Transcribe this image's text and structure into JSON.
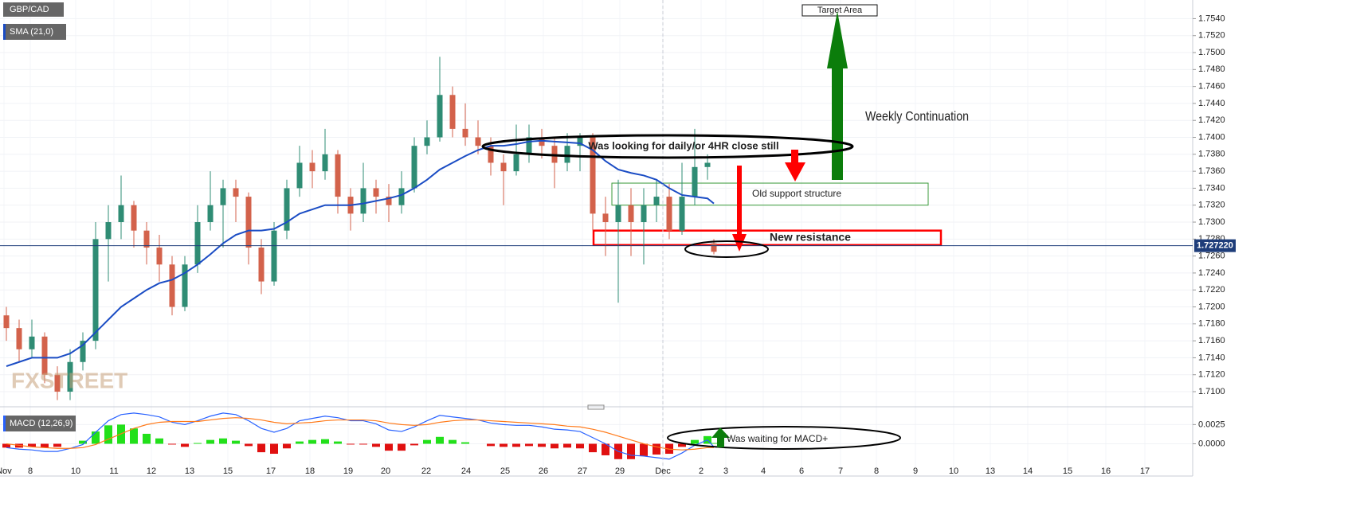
{
  "chart_data": [
    {
      "type": "candlestick",
      "legend": "GBP/CAD",
      "up_color": "#2f8c74",
      "down_color": "#d3624b",
      "ylim": [
        1.7085,
        1.7562
      ],
      "yticks": [
        {
          "value": 1.71,
          "label": "1.7100"
        },
        {
          "value": 1.712,
          "label": "1.7120"
        },
        {
          "value": 1.714,
          "label": "1.7140"
        },
        {
          "value": 1.716,
          "label": "1.7160"
        },
        {
          "value": 1.718,
          "label": "1.7180"
        },
        {
          "value": 1.72,
          "label": "1.7200"
        },
        {
          "value": 1.722,
          "label": "1.7220"
        },
        {
          "value": 1.724,
          "label": "1.7240"
        },
        {
          "value": 1.726,
          "label": "1.7260"
        },
        {
          "value": 1.728,
          "label": "1.7280"
        },
        {
          "value": 1.73,
          "label": "1.7300"
        },
        {
          "value": 1.732,
          "label": "1.7320"
        },
        {
          "value": 1.734,
          "label": "1.7340"
        },
        {
          "value": 1.736,
          "label": "1.7360"
        },
        {
          "value": 1.738,
          "label": "1.7380"
        },
        {
          "value": 1.74,
          "label": "1.7400"
        },
        {
          "value": 1.742,
          "label": "1.7420"
        },
        {
          "value": 1.744,
          "label": "1.7440"
        },
        {
          "value": 1.746,
          "label": "1.7460"
        },
        {
          "value": 1.748,
          "label": "1.7480"
        },
        {
          "value": 1.75,
          "label": "1.7500"
        },
        {
          "value": 1.752,
          "label": "1.7520"
        },
        {
          "value": 1.754,
          "label": "1.7540"
        }
      ],
      "x_labels": [
        "Nov",
        "8",
        "10",
        "11",
        "12",
        "13",
        "15",
        "17",
        "18",
        "19",
        "20",
        "22",
        "24",
        "25",
        "26",
        "27",
        "29",
        "Dec",
        "2",
        "3",
        "4",
        "6",
        "7",
        "8",
        "9",
        "10",
        "13",
        "14",
        "15",
        "16",
        "17"
      ],
      "candles": [
        [
          1.719,
          1.72,
          1.716,
          1.7175
        ],
        [
          1.7175,
          1.7185,
          1.7135,
          1.715
        ],
        [
          1.715,
          1.7185,
          1.714,
          1.7165
        ],
        [
          1.7165,
          1.717,
          1.711,
          1.712
        ],
        [
          1.712,
          1.713,
          1.709,
          1.71
        ],
        [
          1.71,
          1.715,
          1.709,
          1.7135
        ],
        [
          1.7135,
          1.717,
          1.7125,
          1.716
        ],
        [
          1.716,
          1.73,
          1.715,
          1.728
        ],
        [
          1.728,
          1.732,
          1.723,
          1.73
        ],
        [
          1.73,
          1.7355,
          1.728,
          1.732
        ],
        [
          1.732,
          1.7325,
          1.727,
          1.729
        ],
        [
          1.729,
          1.73,
          1.725,
          1.727
        ],
        [
          1.727,
          1.7285,
          1.723,
          1.725
        ],
        [
          1.725,
          1.726,
          1.719,
          1.72
        ],
        [
          1.72,
          1.726,
          1.7195,
          1.725
        ],
        [
          1.725,
          1.732,
          1.724,
          1.73
        ],
        [
          1.73,
          1.736,
          1.729,
          1.732
        ],
        [
          1.732,
          1.735,
          1.727,
          1.734
        ],
        [
          1.734,
          1.735,
          1.73,
          1.733
        ],
        [
          1.733,
          1.7335,
          1.725,
          1.727
        ],
        [
          1.727,
          1.728,
          1.7215,
          1.723
        ],
        [
          1.723,
          1.73,
          1.7225,
          1.729
        ],
        [
          1.729,
          1.735,
          1.728,
          1.734
        ],
        [
          1.734,
          1.739,
          1.733,
          1.737
        ],
        [
          1.737,
          1.7385,
          1.734,
          1.736
        ],
        [
          1.736,
          1.741,
          1.735,
          1.738
        ],
        [
          1.738,
          1.7385,
          1.731,
          1.733
        ],
        [
          1.733,
          1.734,
          1.729,
          1.731
        ],
        [
          1.731,
          1.737,
          1.73,
          1.734
        ],
        [
          1.734,
          1.735,
          1.731,
          1.733
        ],
        [
          1.733,
          1.7345,
          1.73,
          1.732
        ],
        [
          1.732,
          1.736,
          1.731,
          1.734
        ],
        [
          1.734,
          1.74,
          1.7335,
          1.739
        ],
        [
          1.739,
          1.742,
          1.738,
          1.74
        ],
        [
          1.74,
          1.7495,
          1.7395,
          1.745
        ],
        [
          1.745,
          1.746,
          1.74,
          1.741
        ],
        [
          1.741,
          1.744,
          1.739,
          1.74
        ],
        [
          1.74,
          1.742,
          1.738,
          1.739
        ],
        [
          1.739,
          1.74,
          1.7355,
          1.737
        ],
        [
          1.737,
          1.738,
          1.732,
          1.736
        ],
        [
          1.736,
          1.7415,
          1.7355,
          1.738
        ],
        [
          1.738,
          1.7415,
          1.737,
          1.74
        ],
        [
          1.74,
          1.741,
          1.7375,
          1.739
        ],
        [
          1.739,
          1.74,
          1.734,
          1.737
        ],
        [
          1.737,
          1.7405,
          1.736,
          1.739
        ],
        [
          1.739,
          1.7405,
          1.736,
          1.74
        ],
        [
          1.74,
          1.7405,
          1.729,
          1.731
        ],
        [
          1.731,
          1.733,
          1.726,
          1.73
        ],
        [
          1.73,
          1.735,
          1.7205,
          1.732
        ],
        [
          1.732,
          1.734,
          1.726,
          1.73
        ],
        [
          1.73,
          1.734,
          1.725,
          1.732
        ],
        [
          1.732,
          1.735,
          1.73,
          1.733
        ],
        [
          1.733,
          1.7345,
          1.728,
          1.729
        ],
        [
          1.729,
          1.737,
          1.7285,
          1.733
        ],
        [
          1.733,
          1.741,
          1.732,
          1.7365
        ],
        [
          1.7365,
          1.738,
          1.735,
          1.737
        ],
        [
          1.7275,
          1.728,
          1.7262,
          1.7265
        ]
      ],
      "series": [
        {
          "name": "SMA (21,0)",
          "color": "#1a4cc4",
          "values": [
            1.713,
            1.7135,
            1.714,
            1.714,
            1.714,
            1.7145,
            1.7155,
            1.717,
            1.7185,
            1.72,
            1.721,
            1.722,
            1.7228,
            1.7232,
            1.724,
            1.725,
            1.7262,
            1.7275,
            1.7285,
            1.729,
            1.729,
            1.7292,
            1.73,
            1.731,
            1.7315,
            1.732,
            1.732,
            1.732,
            1.7322,
            1.7325,
            1.7328,
            1.7332,
            1.734,
            1.735,
            1.7362,
            1.737,
            1.7378,
            1.7385,
            1.739,
            1.739,
            1.7392,
            1.7395,
            1.7396,
            1.7395,
            1.7394,
            1.7393,
            1.7385,
            1.7372,
            1.7362,
            1.7358,
            1.7355,
            1.735,
            1.734,
            1.7332,
            1.733,
            1.7328,
            1.7322
          ]
        }
      ],
      "current_price": {
        "value": 1.72722,
        "label": "1.727220"
      },
      "zones": [
        {
          "label": "Old support structure",
          "range": [
            1.732,
            1.7346
          ]
        },
        {
          "label": "New resistance",
          "range": [
            1.7273,
            1.729
          ]
        }
      ],
      "annotations": {
        "target": "Target Area",
        "weekly": "Weekly  Continuation",
        "looking": "Was looking for daily/or 4HR close still",
        "watermark": "FXSTREET"
      }
    },
    {
      "type": "macd",
      "legend": "MACD (12,26,9)",
      "macd_color": "#2962ff",
      "signal_color": "#ff7a1a",
      "up_color": "#22e01a",
      "down_color": "#e01010",
      "ylim": [
        -0.0042,
        0.0043
      ],
      "yticks": [
        {
          "value": 0,
          "label": "0.0000"
        },
        {
          "value": 0.0025,
          "label": "0.0025"
        }
      ],
      "macd": [
        -0.0005,
        -0.0007,
        -0.0008,
        -0.001,
        -0.001,
        -0.0006,
        -0.0001,
        0.0015,
        0.003,
        0.0038,
        0.004,
        0.0038,
        0.0035,
        0.0028,
        0.0025,
        0.003,
        0.0036,
        0.004,
        0.0038,
        0.003,
        0.002,
        0.0015,
        0.002,
        0.003,
        0.0033,
        0.0036,
        0.0034,
        0.003,
        0.003,
        0.0026,
        0.0018,
        0.0016,
        0.0022,
        0.003,
        0.0037,
        0.0035,
        0.0033,
        0.0031,
        0.0027,
        0.0025,
        0.0024,
        0.0024,
        0.0022,
        0.0019,
        0.0018,
        0.0016,
        0.0008,
        0,
        -0.001,
        -0.0015,
        -0.0016,
        -0.0018,
        -0.002,
        -0.0012,
        -0.0002,
        0.0005,
        -0.0004
      ],
      "signal": [
        0,
        -0.0002,
        -0.0004,
        -0.0005,
        -0.0006,
        -0.0006,
        -0.0005,
        -0.0001,
        0.0006,
        0.0013,
        0.002,
        0.0025,
        0.0028,
        0.0029,
        0.0029,
        0.0029,
        0.0031,
        0.0033,
        0.0034,
        0.0033,
        0.0031,
        0.0028,
        0.0026,
        0.0027,
        0.0028,
        0.003,
        0.0031,
        0.0031,
        0.0031,
        0.003,
        0.0027,
        0.0025,
        0.0024,
        0.0025,
        0.0028,
        0.003,
        0.0031,
        0.0031,
        0.003,
        0.0029,
        0.0028,
        0.0027,
        0.0026,
        0.0025,
        0.0023,
        0.0022,
        0.0019,
        0.0015,
        0.001,
        0.0005,
        0,
        -0.0004,
        -0.0007,
        -0.0008,
        -0.0007,
        -0.0005,
        -0.0005
      ],
      "histogram": [
        -0.0005,
        -0.0005,
        -0.0004,
        -0.0005,
        -0.0004,
        0,
        0.0004,
        0.0016,
        0.0024,
        0.0025,
        0.002,
        0.0013,
        0.0007,
        -0.0001,
        -0.0004,
        0.0001,
        0.0005,
        0.0007,
        0.0004,
        -0.0003,
        -0.0011,
        -0.0013,
        -0.0006,
        0.0003,
        0.0005,
        0.0006,
        0.0003,
        -0.0001,
        -0.0001,
        -0.0004,
        -0.0009,
        -0.0009,
        -0.0002,
        0.0005,
        0.0009,
        0.0005,
        0.0002,
        0,
        -0.0003,
        -0.0004,
        -0.0004,
        -0.0003,
        -0.0004,
        -0.0006,
        -0.0005,
        -0.0006,
        -0.0011,
        -0.0015,
        -0.002,
        -0.002,
        -0.0016,
        -0.0014,
        -0.0013,
        -0.0004,
        0.0005,
        0.001,
        0.0001
      ],
      "annotation": "Was waiting for MACD+"
    }
  ]
}
